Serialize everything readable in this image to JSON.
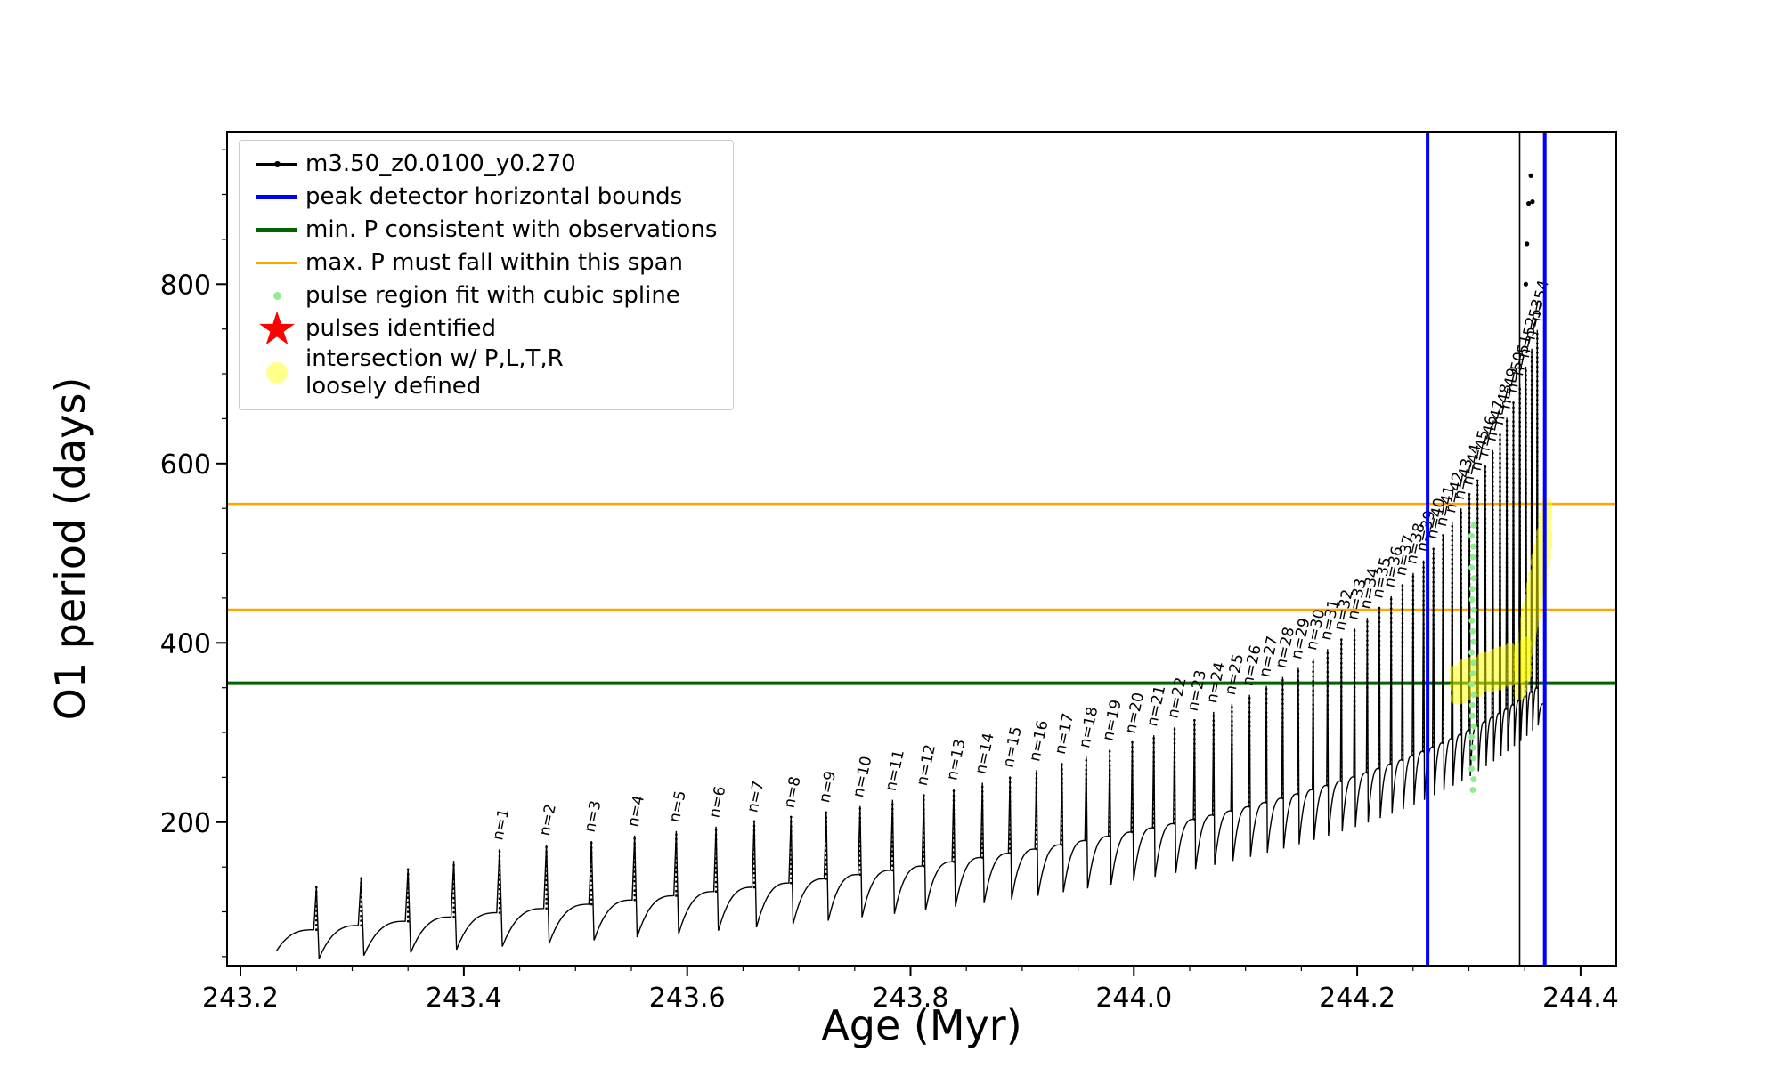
{
  "colors": {
    "series": "#000000",
    "peak_bounds": "#0000ff",
    "min_p": "#006400",
    "max_p": "#ffa500",
    "spline_fit": "#90ee90",
    "pulses": "#ff0000",
    "intersection": "#ffff00"
  },
  "legend": {
    "items": [
      {
        "label": "m3.50_z0.0100_y0.270",
        "marker": "line-dot",
        "color": "#000000"
      },
      {
        "label": "peak detector horizontal bounds",
        "marker": "thick-line",
        "color": "#0000ff"
      },
      {
        "label": "min. P consistent with observations",
        "marker": "thick-line",
        "color": "#006400"
      },
      {
        "label": "max. P must fall within this span",
        "marker": "line",
        "color": "#ffa500"
      },
      {
        "label": "pulse region fit with cubic spline",
        "marker": "small-dot",
        "color": "#90ee90"
      },
      {
        "label": "pulses identified",
        "marker": "star",
        "color": "#ff0000"
      },
      {
        "label": "intersection w/ P,L,T,R\nloosely defined",
        "marker": "big-dot",
        "color": "#ffff00"
      }
    ]
  },
  "chart_data": {
    "type": "line",
    "title": "",
    "xlabel": "Age (Myr)",
    "ylabel": "O1 period (days)",
    "xlim": [
      243.188,
      244.432
    ],
    "ylim": [
      40,
      970
    ],
    "xticks": [
      243.2,
      243.4,
      243.6,
      243.8,
      244.0,
      244.2,
      244.4
    ],
    "xtick_labels": [
      "243.2",
      "243.4",
      "243.6",
      "243.8",
      "244.0",
      "244.2",
      "244.4"
    ],
    "x_minor_step": 0.05,
    "yticks": [
      200,
      400,
      600,
      800
    ],
    "ytick_labels": [
      "200",
      "400",
      "600",
      "800"
    ],
    "y_minor_step": 50,
    "grid": false,
    "legend_position": "upper left",
    "pulse_label_prefix": "n=",
    "curve_start": [
      243.232,
      56
    ],
    "curve_end": [
      244.3665,
      332
    ],
    "series": [
      {
        "name": "m3.50_z0.0100_y0.270",
        "color": "#000000",
        "pulses": {
          "x": [
            243.268,
            243.308,
            243.35,
            243.391,
            243.432,
            243.474,
            243.5143,
            243.553,
            243.5902,
            243.6259,
            243.6601,
            243.693,
            243.7245,
            243.7548,
            243.7839,
            243.8119,
            243.8387,
            243.8644,
            243.8891,
            243.9128,
            243.9356,
            243.9574,
            243.9784,
            243.9986,
            244.0179,
            244.0365,
            244.0543,
            244.0714,
            244.0878,
            244.1036,
            244.1187,
            244.1333,
            244.1472,
            244.1606,
            244.1735,
            244.1858,
            244.1976,
            244.209,
            244.2199,
            244.2304,
            244.2405,
            244.2501,
            244.2594,
            244.2683,
            244.2769,
            244.2851,
            244.293,
            244.3005,
            244.3078,
            244.3147,
            244.3214,
            244.3279,
            244.334,
            244.3399,
            244.3456,
            244.3511,
            244.3563,
            244.3613
          ],
          "peak": [
            128,
            138,
            148,
            157,
            170,
            175,
            179,
            185,
            190,
            195,
            201,
            206,
            212,
            218,
            225,
            231,
            237,
            244,
            251,
            258,
            266,
            273,
            281,
            289,
            297,
            306,
            314,
            323,
            332,
            342,
            352,
            362,
            372,
            382,
            393,
            404,
            416,
            428,
            440,
            452,
            465,
            478,
            492,
            506,
            520,
            535,
            550,
            566,
            582,
            598,
            615,
            633,
            651,
            669,
            688,
            708,
            728,
            749
          ],
          "first_labeled_index": 4,
          "shoulder_start": 80,
          "shoulder_end": 350,
          "dip_factor_start": 0.6,
          "dip_factor_end": 0.88
        }
      }
    ],
    "hlines": [
      {
        "y": 355,
        "color": "#006400",
        "width": 4,
        "name": "min-p-line"
      },
      {
        "y": 437,
        "color": "#ffa500",
        "width": 2.5,
        "name": "max-p-span-lower"
      },
      {
        "y": 555,
        "color": "#ffa500",
        "width": 2.5,
        "name": "max-p-span-upper"
      }
    ],
    "vlines": [
      {
        "x": 244.263,
        "color": "#0000ff",
        "width": 4,
        "name": "peak-bound-left"
      },
      {
        "x": 244.368,
        "color": "#0000ff",
        "width": 4,
        "name": "peak-bound-right"
      },
      {
        "x": 244.3455,
        "color": "#000000",
        "width": 1.6,
        "name": "final-pulse-line"
      }
    ],
    "green_points": {
      "x_center": 244.3035,
      "x_jitter": 0.0011,
      "y_start": 236,
      "y_step": 11.8,
      "count": 26,
      "color": "#90ee90",
      "r": 3.5
    },
    "yellow_regions": [
      {
        "x0": 244.286,
        "x1": 244.353,
        "y0": 353,
        "y1": 383,
        "half": 20,
        "ymin": 336,
        "ymax": 428,
        "count": 380,
        "r": 5,
        "color": "#ffff00",
        "opacity": 0.5
      },
      {
        "x0": 244.344,
        "x1": 244.371,
        "y0": 352,
        "y1": 538,
        "half": 36,
        "ymin": 342,
        "ymax": 556,
        "count": 520,
        "r": 5,
        "color": "#ffff00",
        "opacity": 0.5
      }
    ],
    "extra_points": [
      [
        244.352,
        845
      ],
      [
        244.3535,
        890
      ],
      [
        244.357,
        892
      ],
      [
        244.3555,
        921
      ],
      [
        244.351,
        800
      ]
    ],
    "seed": 42
  }
}
